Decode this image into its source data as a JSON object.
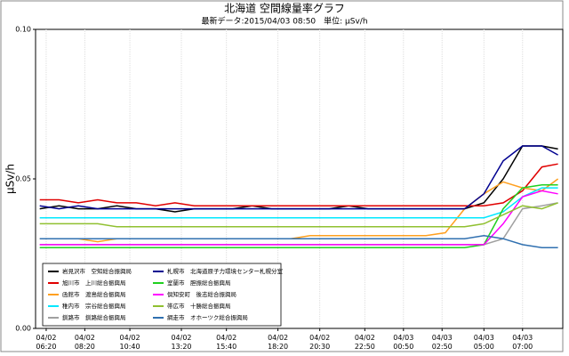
{
  "chart_data": {
    "type": "line",
    "title": "北海道 空間線量率グラフ",
    "subtitle": "最新データ:2015/04/03 08:50　単位: μSv/h",
    "y_label": "μSv/h",
    "x": [
      "04/02 06:00",
      "04/02 07:00",
      "04/02 08:00",
      "04/02 09:00",
      "04/02 10:00",
      "04/02 11:00",
      "04/02 12:00",
      "04/02 13:00",
      "04/02 14:00",
      "04/02 15:00",
      "04/02 16:00",
      "04/02 17:00",
      "04/02 18:00",
      "04/02 19:00",
      "04/02 20:00",
      "04/02 21:00",
      "04/02 22:00",
      "04/02 23:00",
      "04/03 00:00",
      "04/03 01:00",
      "04/03 02:00",
      "04/03 03:00",
      "04/03 04:00",
      "04/03 05:00",
      "04/03 06:00",
      "04/03 07:00",
      "04/03 08:00",
      "04/03 08:50"
    ],
    "xlim": [
      "04/02 05:47",
      "04/03 09:05"
    ],
    "xticks": [
      "04/02 06:20",
      "04/02 08:20",
      "04/02 10:40",
      "04/02 13:20",
      "04/02 15:40",
      "04/02 18:20",
      "04/02 20:30",
      "04/02 22:50",
      "04/03 00:50",
      "04/03 02:50",
      "04/03 05:00",
      "04/03 07:00"
    ],
    "ylim": [
      0,
      0.1
    ],
    "yticks": [
      {
        "value": 0,
        "label": "0.00"
      },
      {
        "value": 0.05,
        "label": "0.05"
      },
      {
        "value": 0.1,
        "label": "0.10"
      }
    ],
    "grid": true,
    "series": [
      {
        "name": "岩見沢市　空知総合振興局",
        "color": "#000000",
        "values": [
          0.04,
          0.041,
          0.04,
          0.04,
          0.041,
          0.04,
          0.04,
          0.039,
          0.04,
          0.04,
          0.04,
          0.041,
          0.04,
          0.04,
          0.04,
          0.04,
          0.041,
          0.04,
          0.04,
          0.04,
          0.04,
          0.04,
          0.04,
          0.042,
          0.05,
          0.061,
          0.061,
          0.06
        ]
      },
      {
        "name": "旭川市　上川総合振興局",
        "color": "#e00000",
        "values": [
          0.043,
          0.043,
          0.042,
          0.043,
          0.042,
          0.042,
          0.041,
          0.042,
          0.041,
          0.041,
          0.041,
          0.041,
          0.041,
          0.041,
          0.041,
          0.041,
          0.041,
          0.041,
          0.041,
          0.041,
          0.041,
          0.041,
          0.041,
          0.041,
          0.042,
          0.046,
          0.054,
          0.055
        ]
      },
      {
        "name": "函館市　渡島総合振興局",
        "color": "#ffa020",
        "values": [
          0.03,
          0.03,
          0.03,
          0.029,
          0.03,
          0.03,
          0.03,
          0.03,
          0.03,
          0.03,
          0.03,
          0.03,
          0.03,
          0.03,
          0.031,
          0.031,
          0.031,
          0.031,
          0.031,
          0.031,
          0.031,
          0.032,
          0.04,
          0.045,
          0.049,
          0.047,
          0.046,
          0.05
        ]
      },
      {
        "name": "稚内市　宗谷総合振興局",
        "color": "#00e8ff",
        "values": [
          0.037,
          0.037,
          0.037,
          0.037,
          0.037,
          0.037,
          0.037,
          0.037,
          0.037,
          0.037,
          0.037,
          0.037,
          0.037,
          0.037,
          0.037,
          0.037,
          0.037,
          0.037,
          0.037,
          0.037,
          0.037,
          0.037,
          0.037,
          0.037,
          0.039,
          0.044,
          0.047,
          0.047
        ]
      },
      {
        "name": "釧路市　釧路総合振興局",
        "color": "#a0a0a0",
        "values": [
          0.028,
          0.028,
          0.028,
          0.028,
          0.028,
          0.028,
          0.028,
          0.028,
          0.028,
          0.028,
          0.028,
          0.028,
          0.028,
          0.028,
          0.028,
          0.028,
          0.028,
          0.028,
          0.028,
          0.028,
          0.028,
          0.028,
          0.028,
          0.028,
          0.03,
          0.04,
          0.041,
          0.042
        ]
      },
      {
        "name": "札幌市　北海道原子力環境センター札幌分室",
        "color": "#000090",
        "values": [
          0.041,
          0.04,
          0.041,
          0.04,
          0.04,
          0.04,
          0.04,
          0.04,
          0.04,
          0.04,
          0.04,
          0.04,
          0.04,
          0.04,
          0.04,
          0.04,
          0.04,
          0.04,
          0.04,
          0.04,
          0.04,
          0.04,
          0.04,
          0.045,
          0.056,
          0.061,
          0.061,
          0.058
        ]
      },
      {
        "name": "室蘭市　胆振総合振興局",
        "color": "#20d020",
        "values": [
          0.027,
          0.027,
          0.027,
          0.027,
          0.027,
          0.027,
          0.027,
          0.027,
          0.027,
          0.027,
          0.027,
          0.027,
          0.027,
          0.027,
          0.027,
          0.027,
          0.027,
          0.027,
          0.027,
          0.027,
          0.027,
          0.027,
          0.027,
          0.028,
          0.04,
          0.047,
          0.048,
          0.048
        ]
      },
      {
        "name": "倶知安町　後志総合振興局",
        "color": "#ff00ff",
        "values": [
          0.028,
          0.028,
          0.028,
          0.028,
          0.028,
          0.028,
          0.028,
          0.028,
          0.028,
          0.028,
          0.028,
          0.028,
          0.028,
          0.028,
          0.028,
          0.028,
          0.028,
          0.028,
          0.028,
          0.028,
          0.028,
          0.028,
          0.028,
          0.028,
          0.035,
          0.044,
          0.046,
          0.045
        ]
      },
      {
        "name": "帯広市　十勝総合振興局",
        "color": "#90c030",
        "values": [
          0.035,
          0.035,
          0.035,
          0.035,
          0.034,
          0.034,
          0.034,
          0.034,
          0.034,
          0.034,
          0.034,
          0.034,
          0.034,
          0.034,
          0.034,
          0.034,
          0.034,
          0.034,
          0.034,
          0.034,
          0.034,
          0.034,
          0.034,
          0.035,
          0.038,
          0.041,
          0.04,
          0.042
        ]
      },
      {
        "name": "網走市　オホーツク総合振興局",
        "color": "#3070b0",
        "values": [
          0.03,
          0.03,
          0.03,
          0.03,
          0.03,
          0.03,
          0.03,
          0.03,
          0.03,
          0.03,
          0.03,
          0.03,
          0.03,
          0.03,
          0.03,
          0.03,
          0.03,
          0.03,
          0.03,
          0.03,
          0.03,
          0.03,
          0.03,
          0.031,
          0.03,
          0.028,
          0.027,
          0.027
        ]
      }
    ]
  }
}
